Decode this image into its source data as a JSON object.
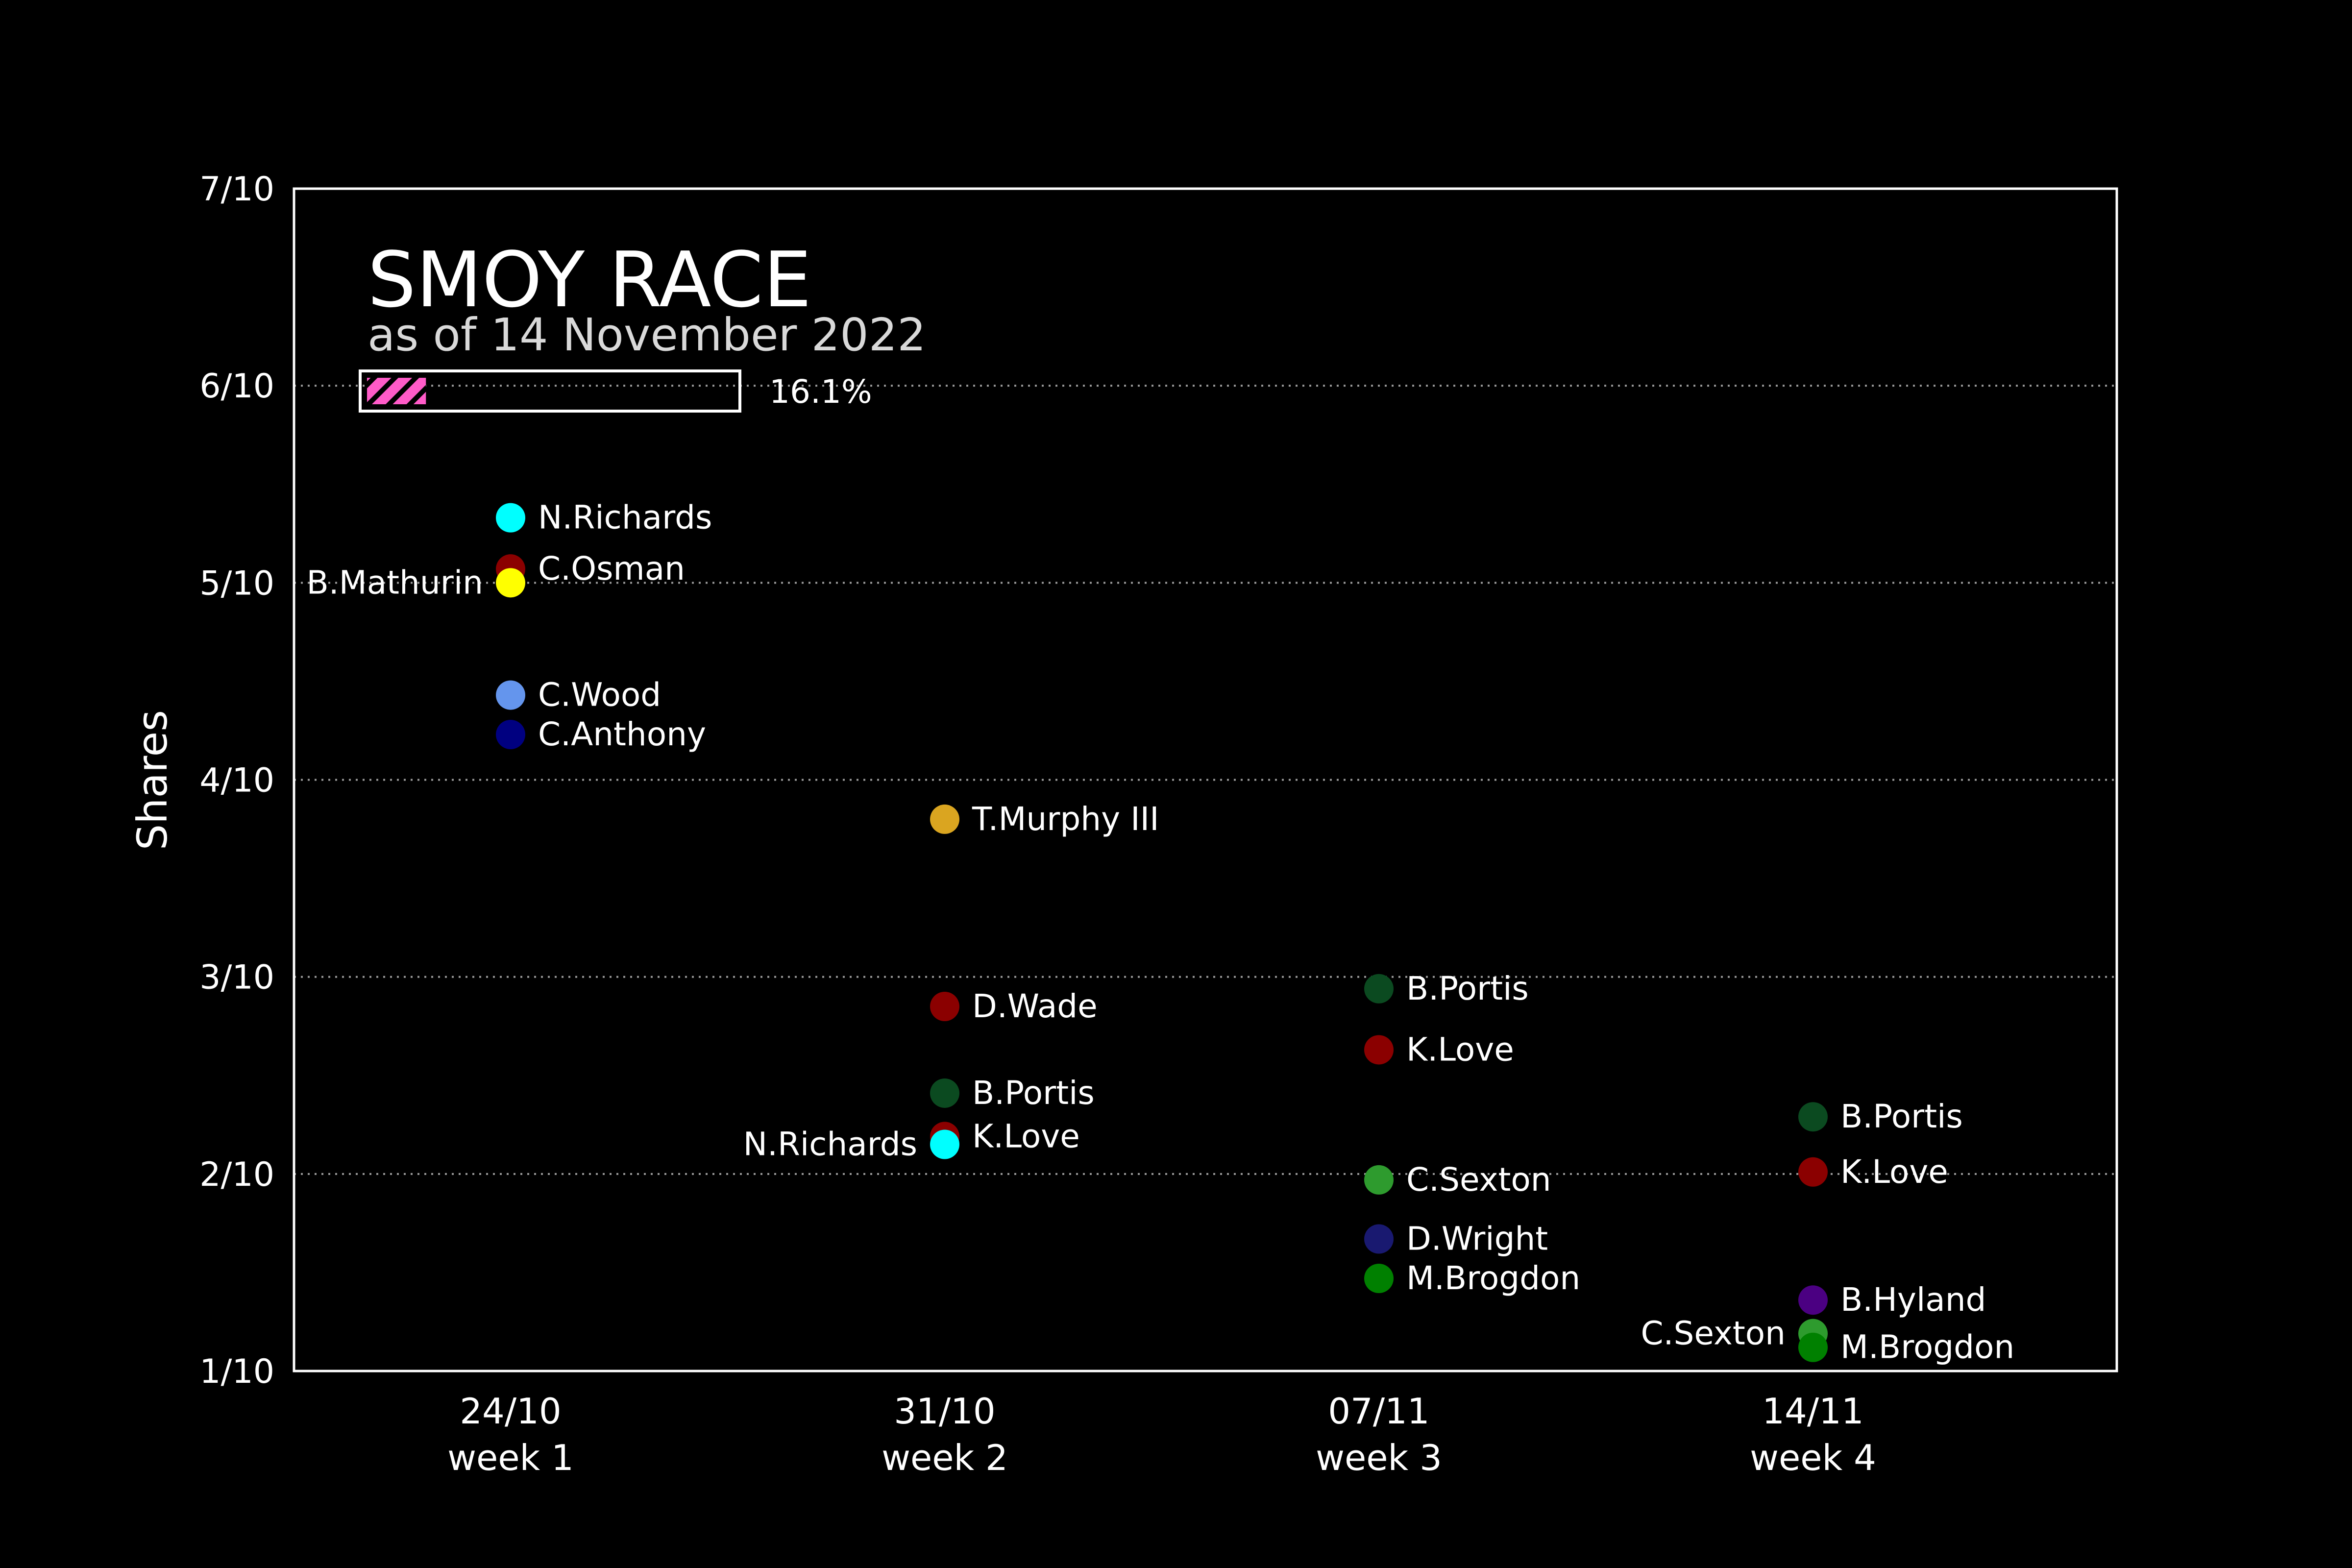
{
  "chart_data": {
    "type": "scatter",
    "title": "SMOY RACE",
    "subtitle": "as of 14 November 2022",
    "ylabel": "Shares",
    "xlabel": "",
    "ylim": [
      0.1,
      0.7
    ],
    "y_ticks": [
      "1/10",
      "2/10",
      "3/10",
      "4/10",
      "5/10",
      "6/10",
      "7/10"
    ],
    "y_tick_values": [
      0.1,
      0.2,
      0.3,
      0.4,
      0.5,
      0.6,
      0.7
    ],
    "grid": "horizontal dotted",
    "x_categories": [
      {
        "date": "24/10",
        "week": "week 1"
      },
      {
        "date": "31/10",
        "week": "week 2"
      },
      {
        "date": "07/11",
        "week": "week 3"
      },
      {
        "date": "14/11",
        "week": "week 4"
      }
    ],
    "progress": {
      "fraction": 0.161,
      "label": "16.1%",
      "color": "#ff5bc8"
    },
    "points": [
      {
        "week": 0,
        "name": "N.Richards",
        "value": 0.533,
        "color": "#00ffff",
        "label_side": "right"
      },
      {
        "week": 0,
        "name": "C.Osman",
        "value": 0.507,
        "color": "#8b0000",
        "label_side": "right"
      },
      {
        "week": 0,
        "name": "B.Mathurin",
        "value": 0.5,
        "color": "#ffff00",
        "label_side": "left"
      },
      {
        "week": 0,
        "name": "C.Wood",
        "value": 0.443,
        "color": "#6495ed",
        "label_side": "right"
      },
      {
        "week": 0,
        "name": "C.Anthony",
        "value": 0.423,
        "color": "#000080",
        "label_side": "right"
      },
      {
        "week": 1,
        "name": "T.Murphy III",
        "value": 0.38,
        "color": "#daa520",
        "label_side": "right"
      },
      {
        "week": 1,
        "name": "D.Wade",
        "value": 0.285,
        "color": "#8b0000",
        "label_side": "right"
      },
      {
        "week": 1,
        "name": "B.Portis",
        "value": 0.241,
        "color": "#0b4a20",
        "label_side": "right"
      },
      {
        "week": 1,
        "name": "K.Love",
        "value": 0.219,
        "color": "#8b0000",
        "label_side": "right"
      },
      {
        "week": 1,
        "name": "N.Richards",
        "value": 0.215,
        "color": "#00ffff",
        "label_side": "left"
      },
      {
        "week": 2,
        "name": "B.Portis",
        "value": 0.294,
        "color": "#0b4a20",
        "label_side": "right"
      },
      {
        "week": 2,
        "name": "K.Love",
        "value": 0.263,
        "color": "#8b0000",
        "label_side": "right"
      },
      {
        "week": 2,
        "name": "C.Sexton",
        "value": 0.197,
        "color": "#2e9b2e",
        "label_side": "right"
      },
      {
        "week": 2,
        "name": "D.Wright",
        "value": 0.167,
        "color": "#191970",
        "label_side": "right"
      },
      {
        "week": 2,
        "name": "M.Brogdon",
        "value": 0.147,
        "color": "#008000",
        "label_side": "right"
      },
      {
        "week": 3,
        "name": "B.Portis",
        "value": 0.229,
        "color": "#0b4a20",
        "label_side": "right"
      },
      {
        "week": 3,
        "name": "K.Love",
        "value": 0.201,
        "color": "#8b0000",
        "label_side": "right"
      },
      {
        "week": 3,
        "name": "B.Hyland",
        "value": 0.136,
        "color": "#4b0082",
        "label_side": "right"
      },
      {
        "week": 3,
        "name": "C.Sexton",
        "value": 0.119,
        "color": "#2e9b2e",
        "label_side": "left"
      },
      {
        "week": 3,
        "name": "M.Brogdon",
        "value": 0.112,
        "color": "#008000",
        "label_side": "right"
      }
    ]
  }
}
